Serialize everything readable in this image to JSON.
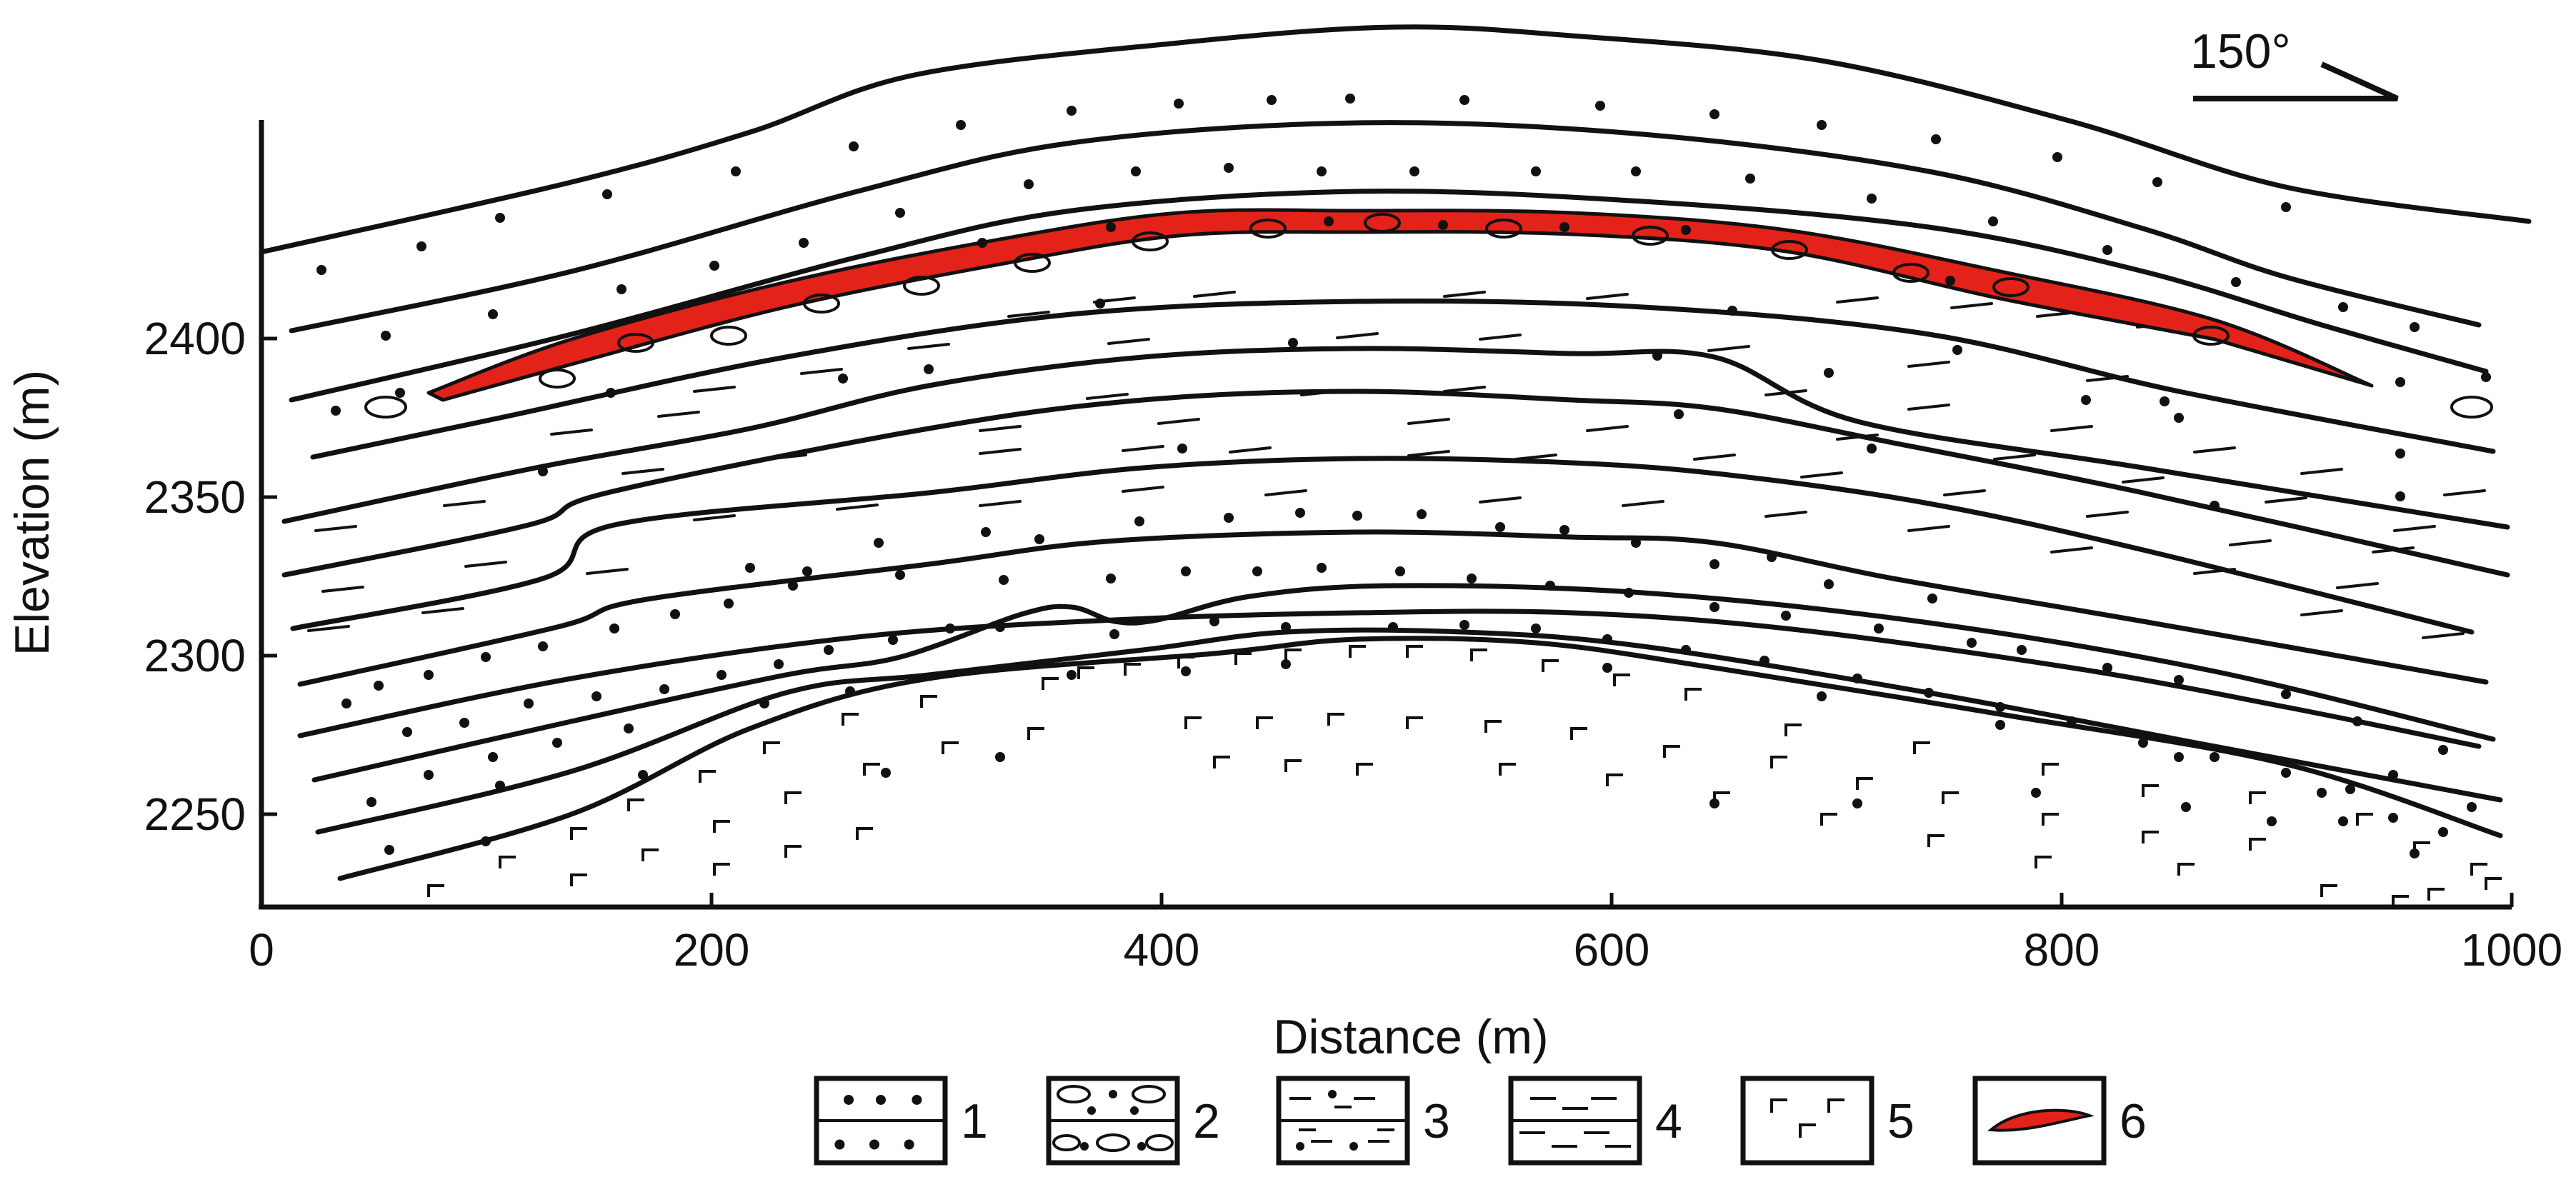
{
  "figure": {
    "orientation_label": "150°",
    "xlabel": "Distance (m)",
    "ylabel": "Elevation (m)",
    "x_ticks": [
      "0",
      "200",
      "400",
      "600",
      "800",
      "1000"
    ],
    "y_ticks": [
      "2250",
      "2300",
      "2350",
      "2400"
    ],
    "legend": [
      {
        "pattern": "sandstone-dots",
        "label": "1"
      },
      {
        "pattern": "conglomerate-ovals",
        "label": "2"
      },
      {
        "pattern": "dashes-with-dots",
        "label": "3"
      },
      {
        "pattern": "dashes",
        "label": "4"
      },
      {
        "pattern": "angle-marks",
        "label": "5"
      },
      {
        "pattern": "red-lens",
        "label": "6"
      }
    ],
    "colors": {
      "ore_body": "#e32219",
      "ink": "#111111"
    }
  }
}
